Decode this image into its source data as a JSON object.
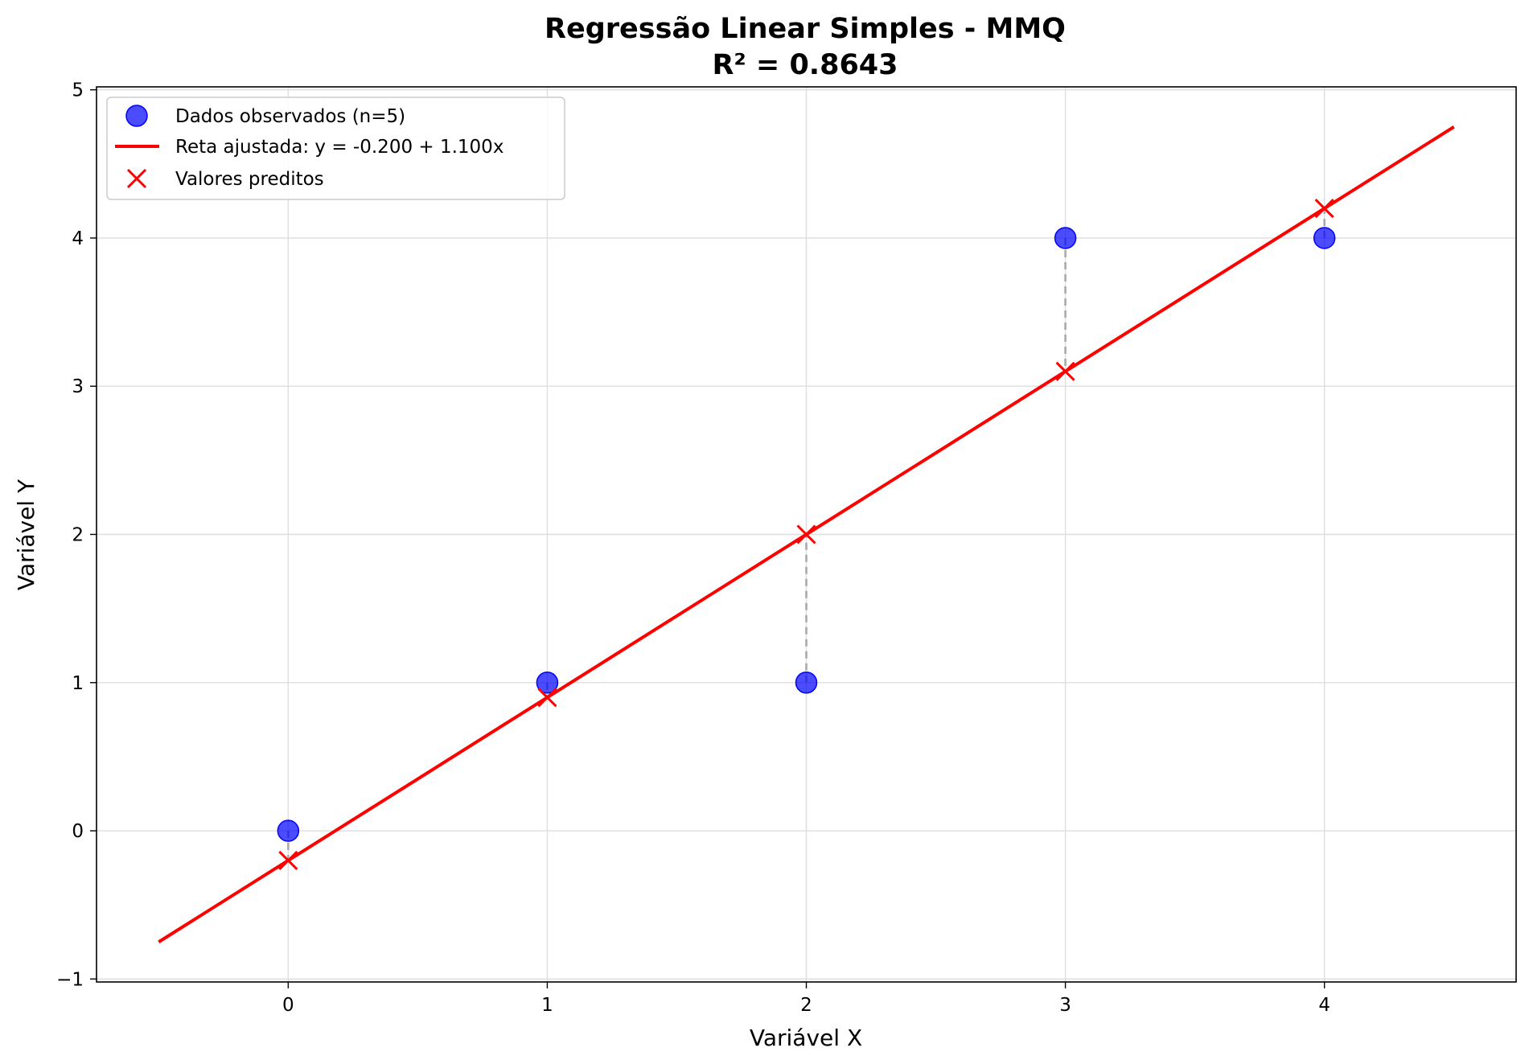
{
  "chart_data": {
    "type": "scatter",
    "title": "Regressão Linear Simples - MMQ",
    "subtitle": "R² = 0.8643",
    "xlabel": "Variável X",
    "ylabel": "Variável Y",
    "xlim": [
      -0.74,
      4.74
    ],
    "ylim": [
      -1.02,
      5.02
    ],
    "xticks": [
      0,
      1,
      2,
      3,
      4
    ],
    "xtick_labels": [
      "0",
      "1",
      "2",
      "3",
      "4"
    ],
    "yticks": [
      -1,
      0,
      1,
      2,
      3,
      4,
      5
    ],
    "ytick_labels": [
      "−1",
      "0",
      "1",
      "2",
      "3",
      "4",
      "5"
    ],
    "grid": true,
    "legend_position": "top-left",
    "observed": {
      "name": "Dados observados (n=5)",
      "color": "#0000ff",
      "x": [
        0,
        1,
        2,
        3,
        4
      ],
      "y": [
        0,
        1,
        1,
        4,
        4
      ]
    },
    "fitted_line": {
      "name": "Reta ajustada: y = -0.200 + 1.100x",
      "color": "#ff0000",
      "intercept": -0.2,
      "slope": 1.1,
      "x_range": [
        -0.5,
        4.5
      ]
    },
    "predicted": {
      "name": "Valores preditos",
      "color": "#ff0000",
      "x": [
        0,
        1,
        2,
        3,
        4
      ],
      "y": [
        -0.2,
        0.9,
        2.0,
        3.1,
        4.2
      ]
    },
    "residual_color": "#aaaaaa"
  }
}
